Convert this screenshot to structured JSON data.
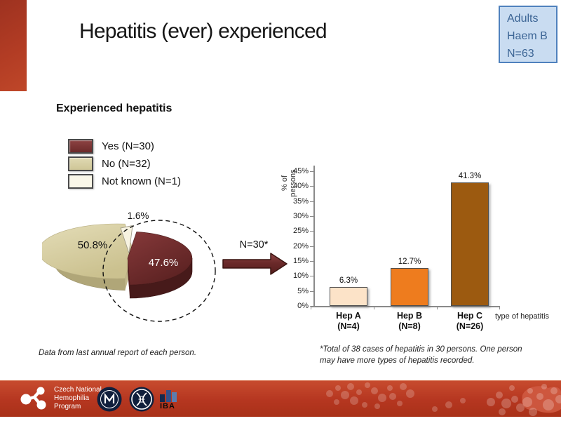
{
  "slide_title": "Hepatitis (ever) experienced",
  "corner_box": {
    "line1": "Adults",
    "line2": "Haem B",
    "line3": "N=63"
  },
  "pie_section": {
    "heading": "Experienced hepatitis"
  },
  "arrow": {
    "label": "N=30*"
  },
  "bar_chart": {
    "yticks": [
      "45%",
      "40%",
      "35%",
      "30%",
      "25%",
      "20%",
      "15%",
      "10%",
      "5%",
      "0%"
    ],
    "bars": [
      {
        "name": "Hep A",
        "n": "(N=4)"
      },
      {
        "name": "Hep B",
        "n": "(N=8)"
      },
      {
        "name": "Hep C",
        "n": "(N=26)"
      }
    ]
  },
  "footnotes": {
    "left": "Data from last annual report of each person.",
    "right_line1": "*Total of 38 cases of hepatitis in 30 persons. One person",
    "right_line2": "may have more types of hepatitis recorded."
  },
  "footer": {
    "program_line1": "Czech National",
    "program_line2": "Hemophilia",
    "program_line3": "Program",
    "iba_label": "IBA"
  },
  "colors": {
    "accent_red": "#b23c24",
    "footer_red": "#b53620",
    "corner_box_border": "#4f81bd",
    "corner_box_bg": "#c9dcf1",
    "corner_box_text": "#3c6595",
    "arrow_fill": "#6b2a2a"
  },
  "chart_data": [
    {
      "type": "pie",
      "title": "Experienced hepatitis",
      "labels": [
        "Yes (N=30)",
        "No (N=32)",
        "Not known (N=1)"
      ],
      "values": [
        47.6,
        50.8,
        1.6
      ],
      "counts": [
        30,
        32,
        1
      ],
      "data_labels": [
        "47.6%",
        "50.8%",
        "1.6%"
      ],
      "colors": [
        "#6b2a2a",
        "#d5cda2",
        "#f8f4e3"
      ],
      "style": "3d exploded pie, Yes slice circled with dashed ellipse leading to bar chart",
      "legend_position": "top-left"
    },
    {
      "type": "bar",
      "categories": [
        "Hep A (N=4)",
        "Hep B (N=8)",
        "Hep C (N=26)"
      ],
      "values": [
        6.3,
        12.7,
        41.3
      ],
      "data_labels": [
        "6.3%",
        "12.7%",
        "41.3%"
      ],
      "colors": [
        "#fce3c8",
        "#ee7c1e",
        "#9c5a10"
      ],
      "title": "",
      "xlabel": "type of hepatitis",
      "ylabel": "% of persons",
      "ylim": [
        0,
        45
      ],
      "ytick_step": 5,
      "grid": false,
      "legend": "none"
    }
  ]
}
